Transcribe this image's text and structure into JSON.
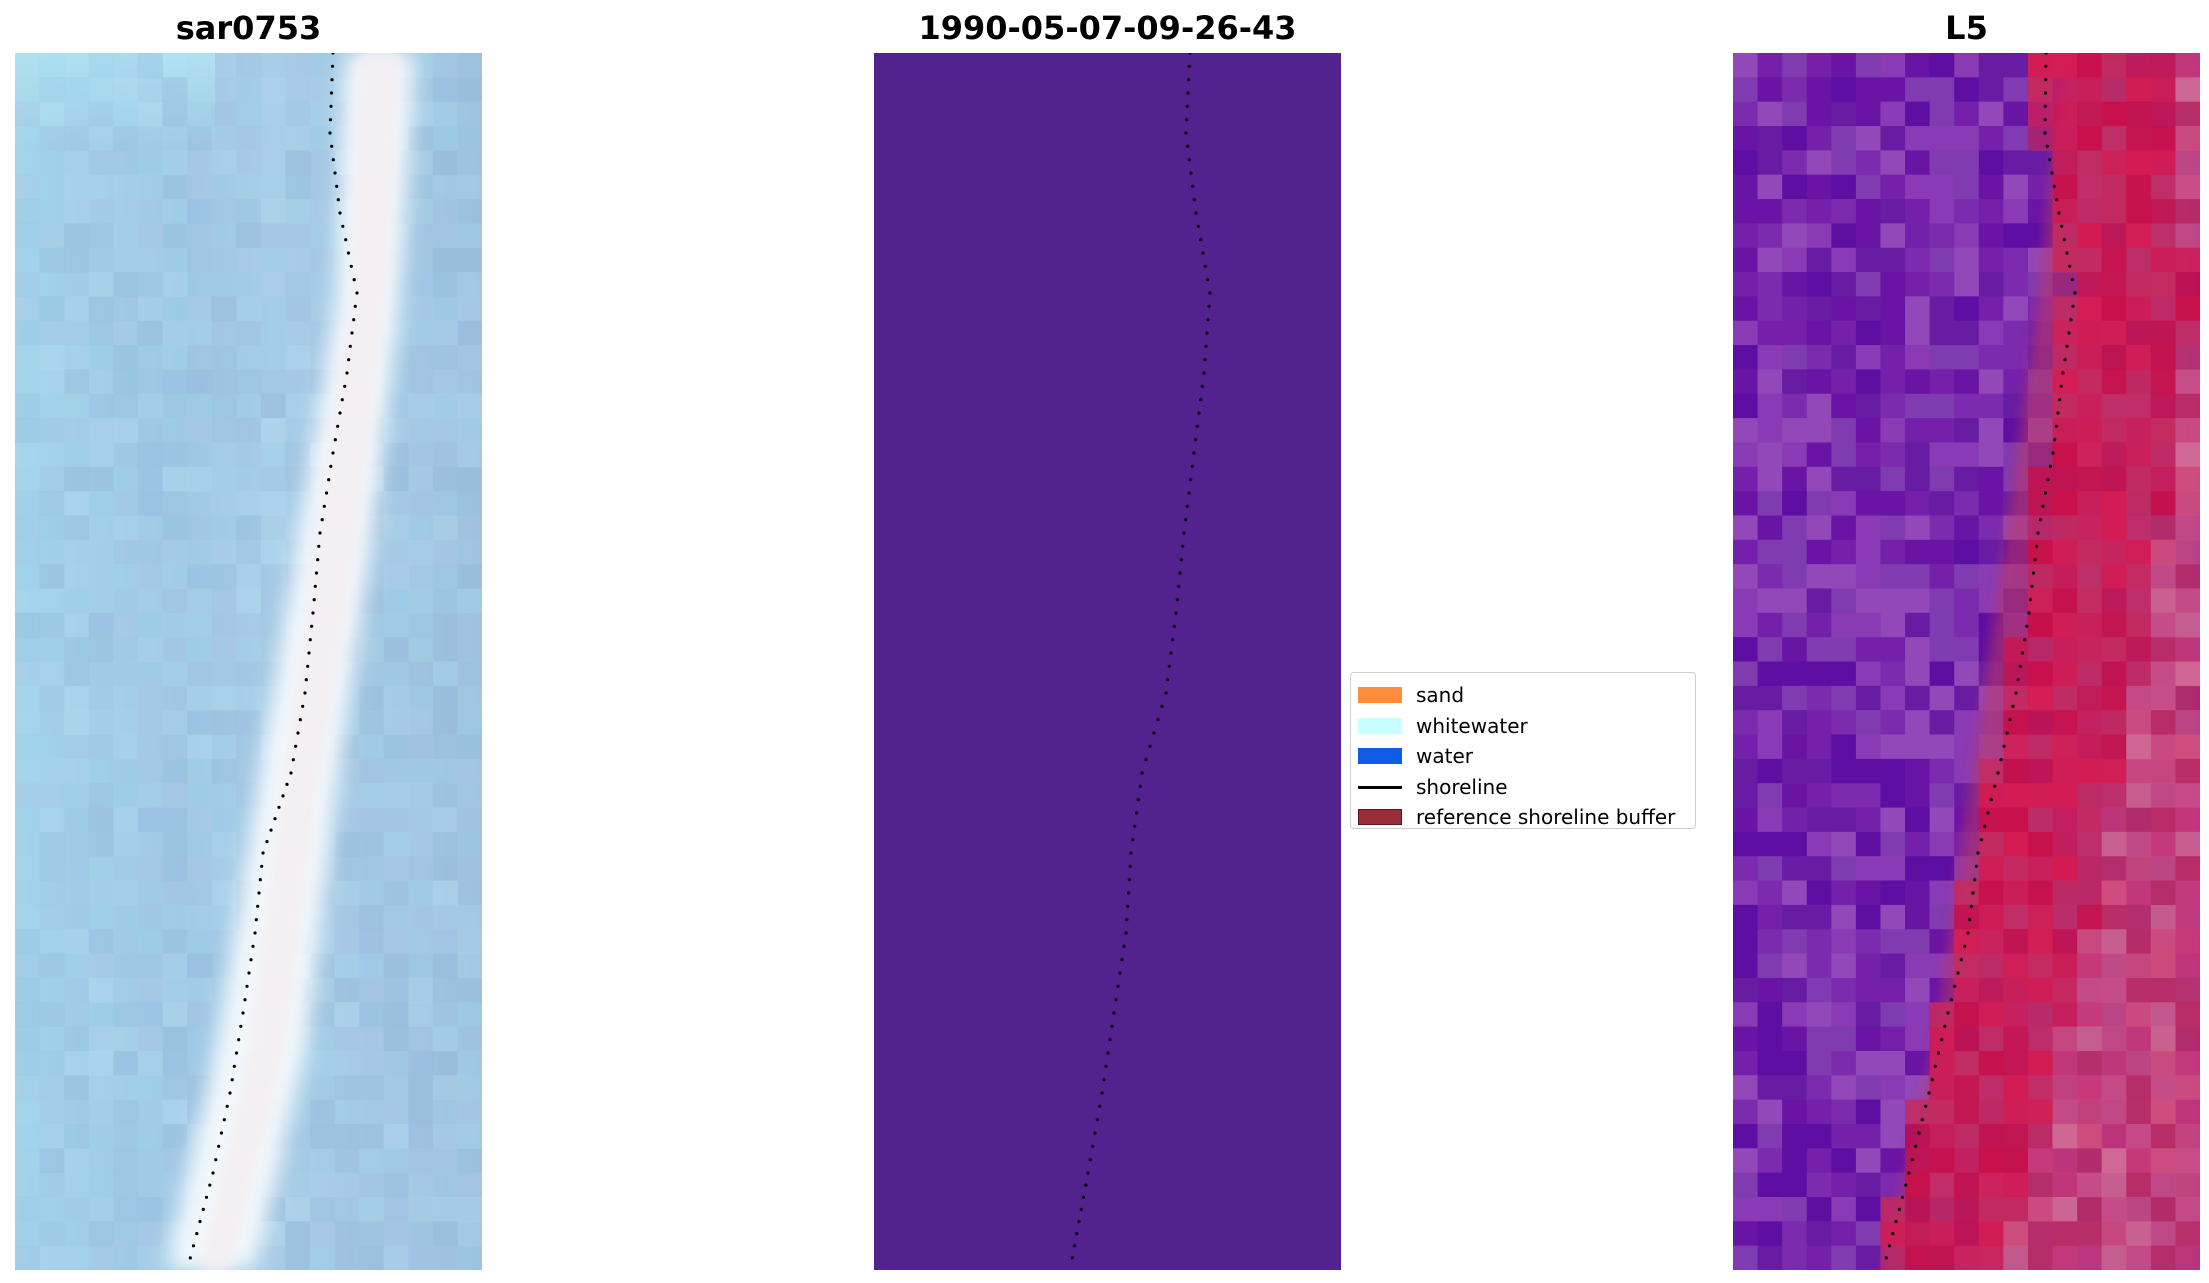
{
  "panels": [
    {
      "title": "sar0753",
      "kind": "rgb"
    },
    {
      "title": "1990-05-07-09-26-43",
      "kind": "classification"
    },
    {
      "title": "L5",
      "kind": "false-color"
    }
  ],
  "legend": {
    "items": [
      {
        "label": "sand",
        "color": "#ff8c3a",
        "kind": "patch"
      },
      {
        "label": "whitewater",
        "color": "#c8ffff",
        "kind": "patch"
      },
      {
        "label": "water",
        "color": "#0f5ce8",
        "kind": "patch"
      },
      {
        "label": "shoreline",
        "color": "#000000",
        "kind": "line"
      },
      {
        "label": "reference shoreline buffer",
        "color": "#9a2e38",
        "kind": "patch"
      }
    ]
  },
  "colors": {
    "classification_fill": "#52228f",
    "shoreline": "#000000"
  }
}
